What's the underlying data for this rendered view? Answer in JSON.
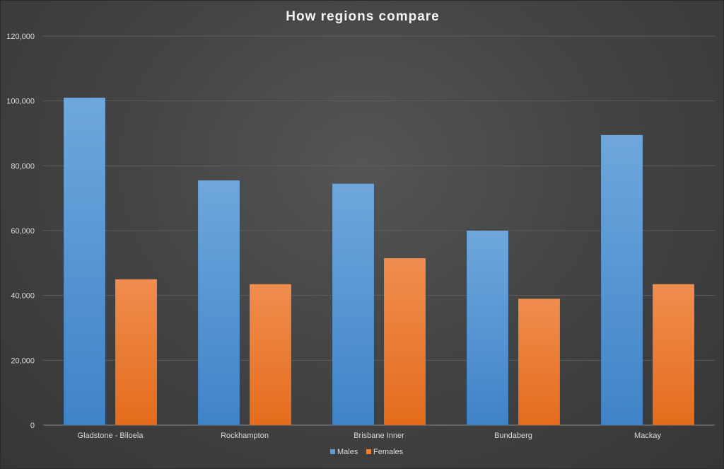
{
  "chart_data": {
    "type": "bar",
    "title": "How regions compare",
    "xlabel": "",
    "ylabel": "",
    "ylim": [
      0,
      120000
    ],
    "yticks": [
      0,
      20000,
      40000,
      60000,
      80000,
      100000,
      120000
    ],
    "ytick_labels": [
      "0",
      "20,000",
      "40,000",
      "60,000",
      "80,000",
      "100,000",
      "120,000"
    ],
    "grid": true,
    "legend_position": "bottom",
    "categories": [
      "Gladstone - Biloela",
      "Rockhampton",
      "Brisbane Inner",
      "Bundaberg",
      "Mackay"
    ],
    "series": [
      {
        "name": "Males",
        "color": "#5b9bd5",
        "values": [
          101000,
          75500,
          74500,
          60000,
          89500
        ]
      },
      {
        "name": "Females",
        "color": "#ed7d31",
        "values": [
          45000,
          43500,
          51500,
          39000,
          43500
        ]
      }
    ]
  }
}
